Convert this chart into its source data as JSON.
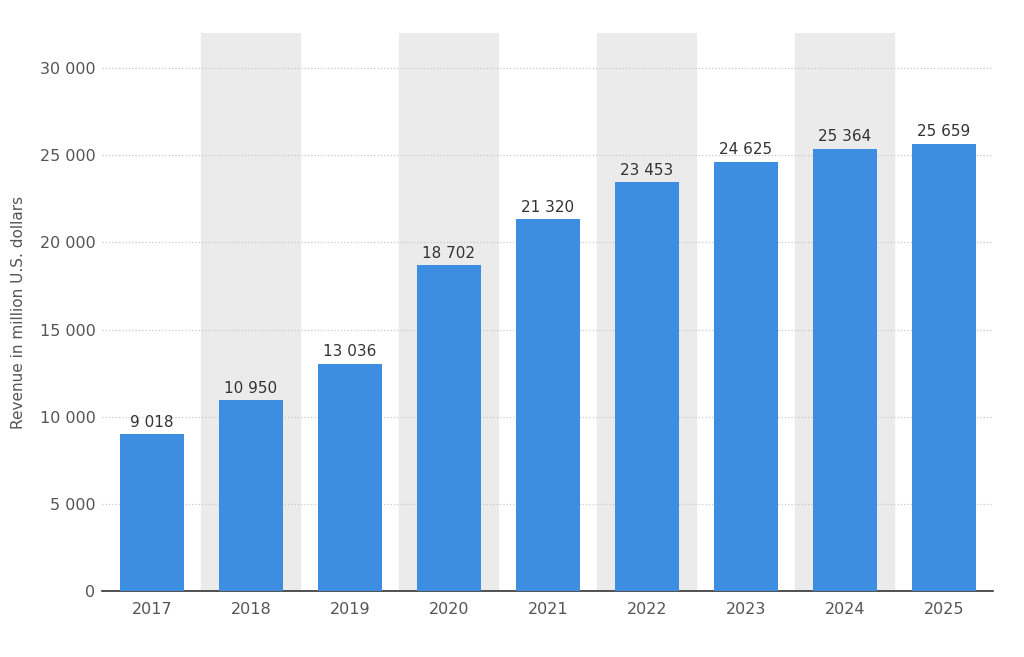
{
  "years": [
    "2017",
    "2018",
    "2019",
    "2020",
    "2021",
    "2022",
    "2023",
    "2024",
    "2025"
  ],
  "values": [
    9018,
    10950,
    13036,
    18702,
    21320,
    23453,
    24625,
    25364,
    25659
  ],
  "bar_color": "#3d8de0",
  "ylabel": "Revenue in million U.S. dollars",
  "ylim": [
    0,
    32000
  ],
  "yticks": [
    0,
    5000,
    10000,
    15000,
    20000,
    25000,
    30000
  ],
  "background_color": "#ffffff",
  "alt_band_color": "#ebebeb",
  "grid_color": "#c8c8c8",
  "label_fontsize": 11.5,
  "ylabel_fontsize": 11,
  "annotation_fontsize": 11,
  "bar_labels": [
    "9 018",
    "10 950",
    "13 036",
    "18 702",
    "21 320",
    "23 453",
    "24 625",
    "25 364",
    "25 659"
  ],
  "alt_band_indices": [
    1,
    3,
    5,
    7
  ]
}
